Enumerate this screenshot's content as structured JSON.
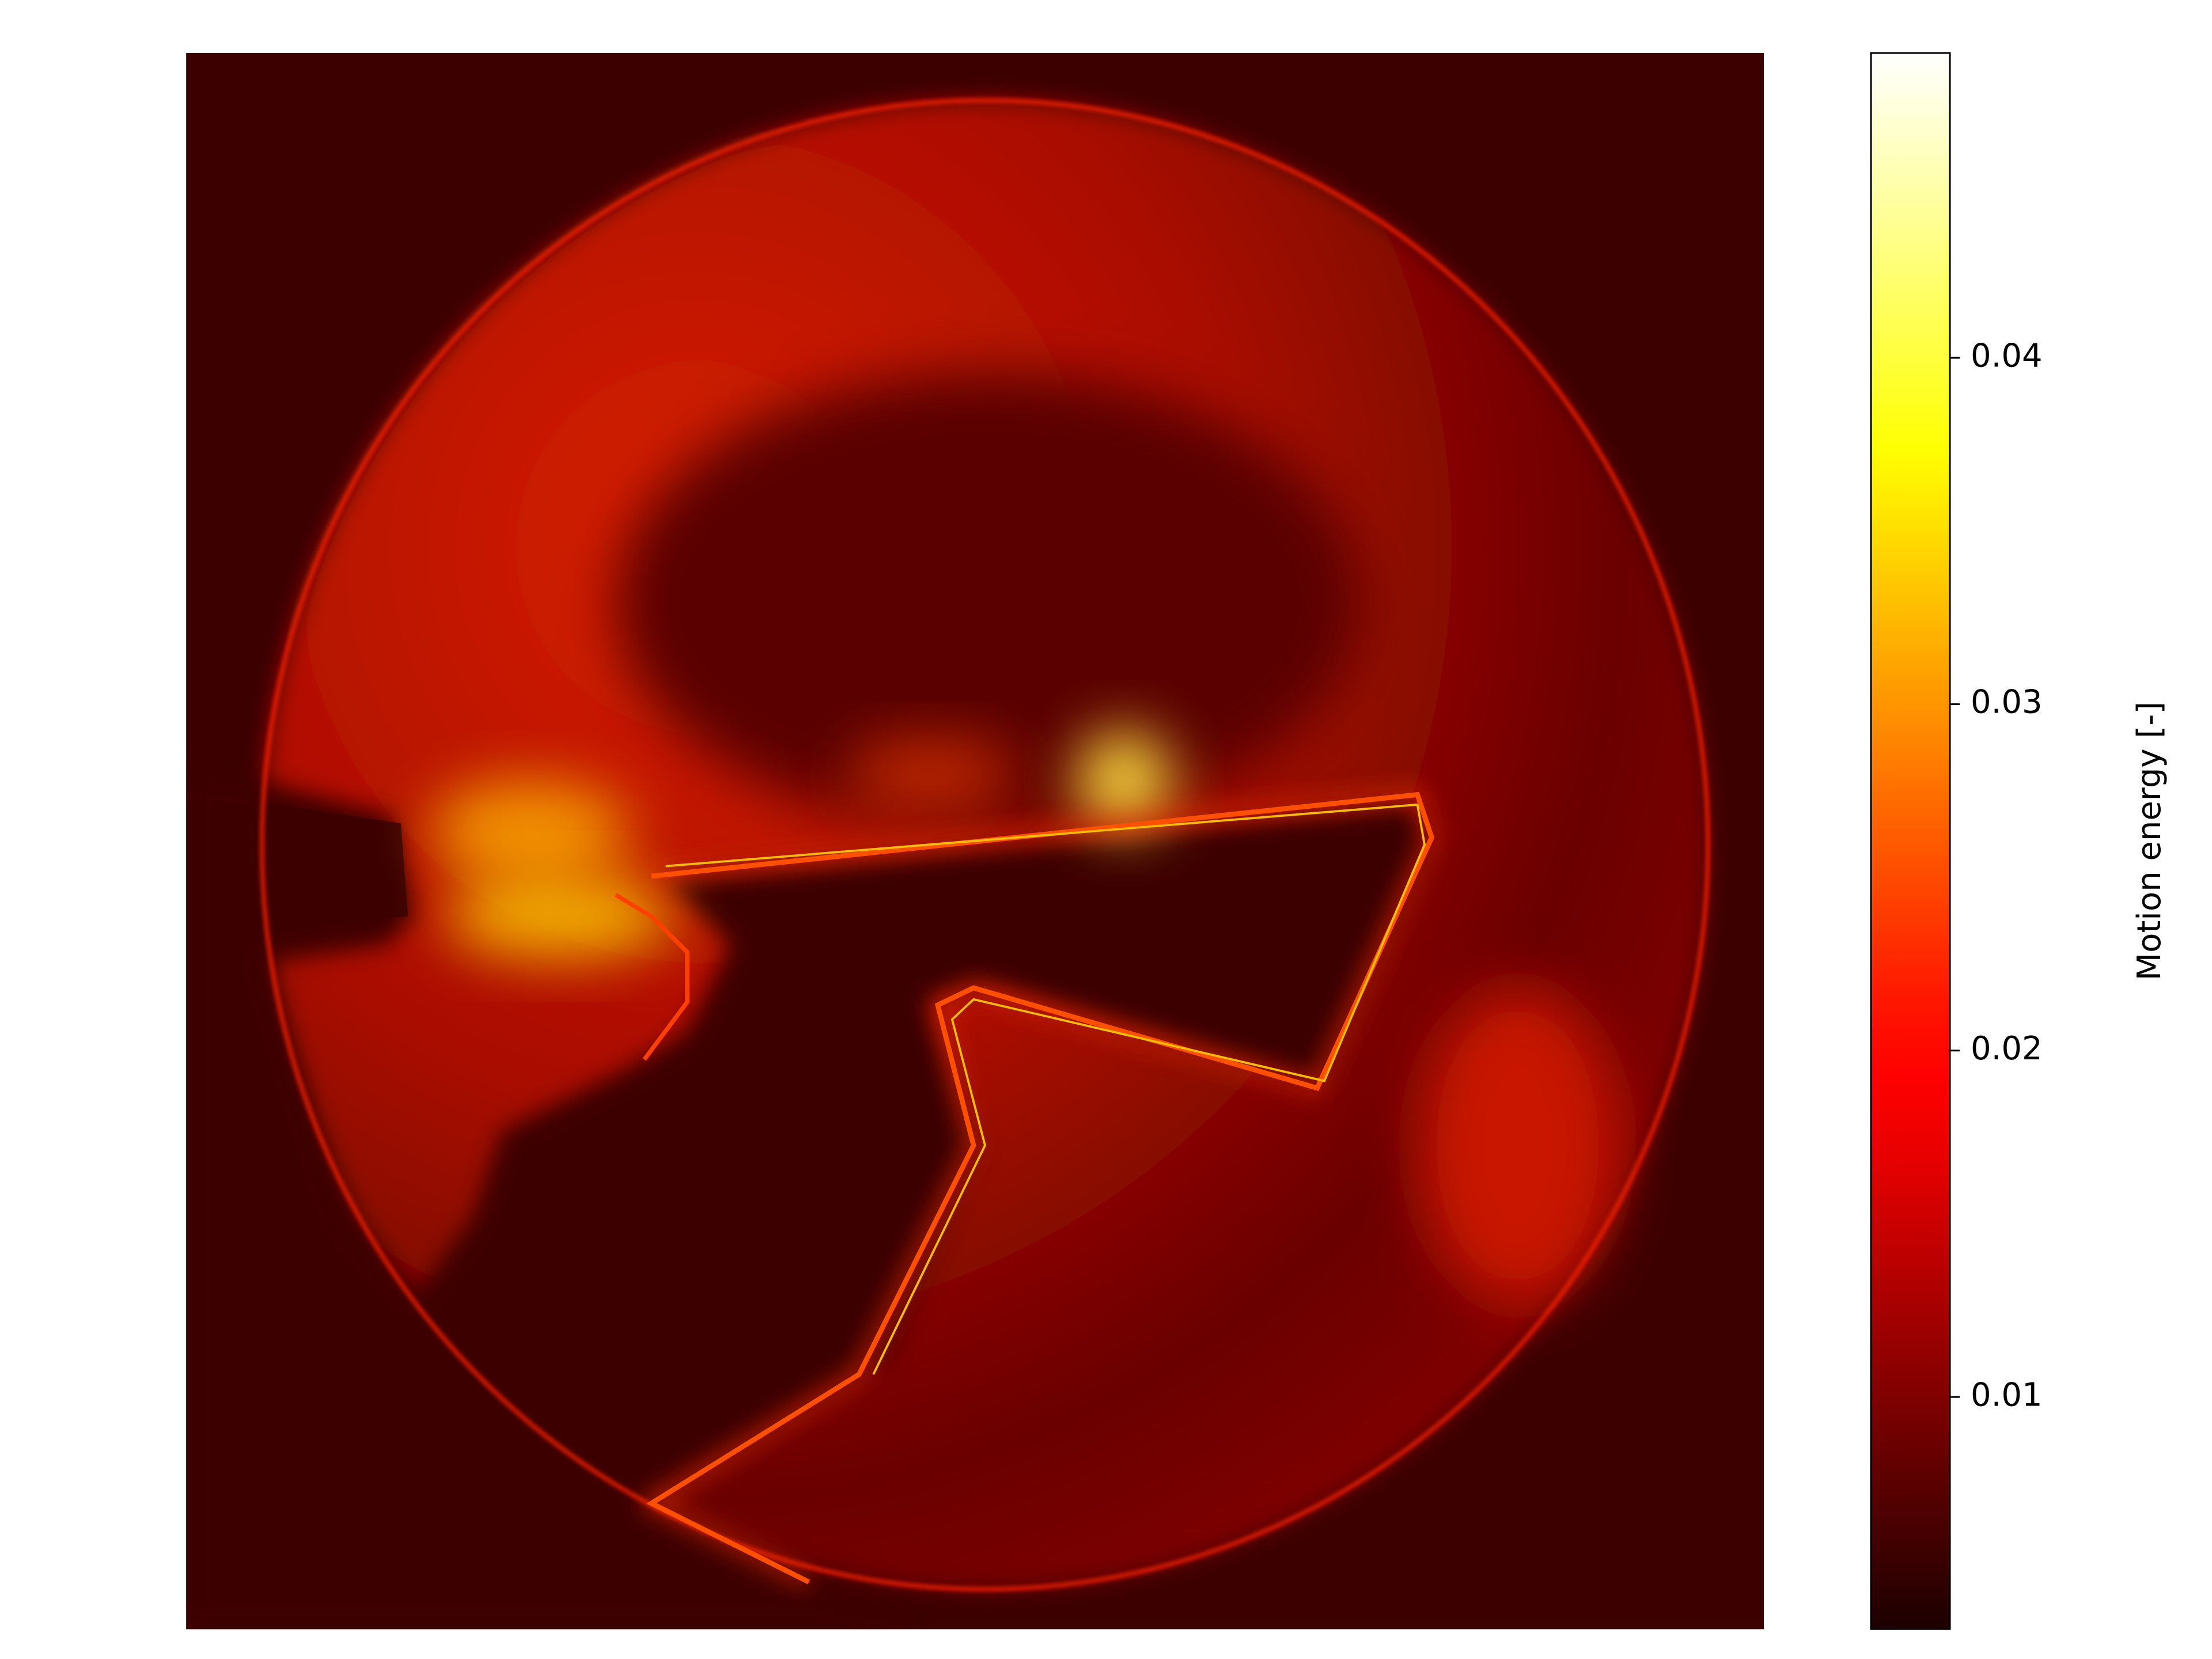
{
  "chart_data": {
    "type": "heatmap",
    "colormap": "hot",
    "clim": [
      0.0033,
      0.0488
    ],
    "cticks": [
      0.01,
      0.02,
      0.03,
      0.04
    ],
    "colorbar_label": "Motion energy [-]"
  }
}
